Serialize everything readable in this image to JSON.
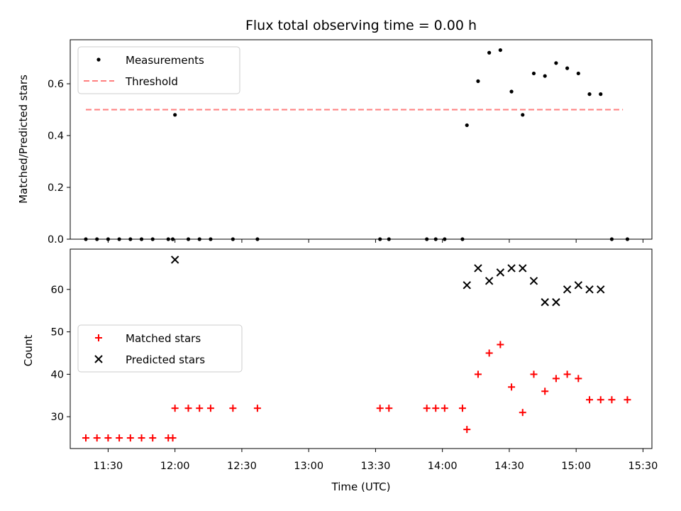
{
  "chart_data": [
    {
      "type": "scatter",
      "title": "Flux total observing time = 0.00 h",
      "ylabel": "Matched/Predicted stars",
      "xlabel": "",
      "x_unit": "HH:MM (UTC)",
      "xlim": [
        "11:13",
        "15:34"
      ],
      "ylim": [
        0,
        0.77
      ],
      "yticks": [
        0.0,
        0.2,
        0.4,
        0.6
      ],
      "ytick_labels": [
        "0.0",
        "0.2",
        "0.4",
        "0.6"
      ],
      "grid": false,
      "legend_position": "upper-left",
      "series": [
        {
          "name": "Measurements",
          "kind": "point",
          "color": "#000000",
          "x": [
            "11:20",
            "11:25",
            "11:30",
            "11:35",
            "11:40",
            "11:45",
            "11:50",
            "11:57",
            "11:59",
            "12:00",
            "12:06",
            "12:11",
            "12:16",
            "12:26",
            "12:37",
            "13:32",
            "13:36",
            "13:53",
            "13:57",
            "14:01",
            "14:09",
            "14:11",
            "14:16",
            "14:21",
            "14:26",
            "14:31",
            "14:36",
            "14:41",
            "14:46",
            "14:51",
            "14:56",
            "15:01",
            "15:06",
            "15:11",
            "15:16",
            "15:23"
          ],
          "y": [
            0,
            0,
            0,
            0,
            0,
            0,
            0,
            0,
            0,
            0.48,
            0,
            0,
            0,
            0,
            0,
            0,
            0,
            0,
            0,
            0,
            0,
            0.44,
            0.61,
            0.72,
            0.73,
            0.57,
            0.48,
            0.64,
            0.63,
            0.68,
            0.66,
            0.64,
            0.56,
            0.56,
            0,
            0
          ]
        },
        {
          "name": "Threshold",
          "kind": "dashed-line",
          "color": "#ff7f7f",
          "x": [
            "11:20",
            "15:21"
          ],
          "y": [
            0.5,
            0.5
          ]
        }
      ]
    },
    {
      "type": "scatter",
      "title": "",
      "ylabel": "Count",
      "xlabel": "Time (UTC)",
      "x_unit": "HH:MM (UTC)",
      "xlim": [
        "11:13",
        "15:34"
      ],
      "ylim": [
        22.5,
        69.5
      ],
      "xticks": [
        "11:30",
        "12:00",
        "12:30",
        "13:00",
        "13:30",
        "14:00",
        "14:30",
        "15:00",
        "15:30"
      ],
      "yticks": [
        30,
        40,
        50,
        60
      ],
      "ytick_labels": [
        "30",
        "40",
        "50",
        "60"
      ],
      "grid": false,
      "legend_position": "center-left",
      "series": [
        {
          "name": "Matched stars",
          "marker": "plus",
          "color": "#ff0000",
          "x": [
            "11:20",
            "11:25",
            "11:30",
            "11:35",
            "11:40",
            "11:45",
            "11:50",
            "11:57",
            "11:59",
            "12:00",
            "12:06",
            "12:11",
            "12:16",
            "12:26",
            "12:37",
            "13:32",
            "13:36",
            "13:53",
            "13:57",
            "14:01",
            "14:09",
            "14:11",
            "14:16",
            "14:21",
            "14:26",
            "14:31",
            "14:36",
            "14:41",
            "14:46",
            "14:51",
            "14:56",
            "15:01",
            "15:06",
            "15:11",
            "15:16",
            "15:23"
          ],
          "y": [
            25,
            25,
            25,
            25,
            25,
            25,
            25,
            25,
            25,
            32,
            32,
            32,
            32,
            32,
            32,
            32,
            32,
            32,
            32,
            32,
            32,
            27,
            40,
            45,
            47,
            37,
            31,
            40,
            36,
            39,
            40,
            39,
            34,
            34,
            34,
            34
          ]
        },
        {
          "name": "Predicted stars",
          "marker": "x",
          "color": "#000000",
          "x": [
            "12:00",
            "14:11",
            "14:16",
            "14:21",
            "14:26",
            "14:31",
            "14:36",
            "14:41",
            "14:46",
            "14:51",
            "14:56",
            "15:01",
            "15:06",
            "15:11"
          ],
          "y": [
            67,
            61,
            65,
            62,
            64,
            65,
            65,
            62,
            57,
            57,
            60,
            61,
            60,
            60
          ]
        }
      ]
    }
  ]
}
